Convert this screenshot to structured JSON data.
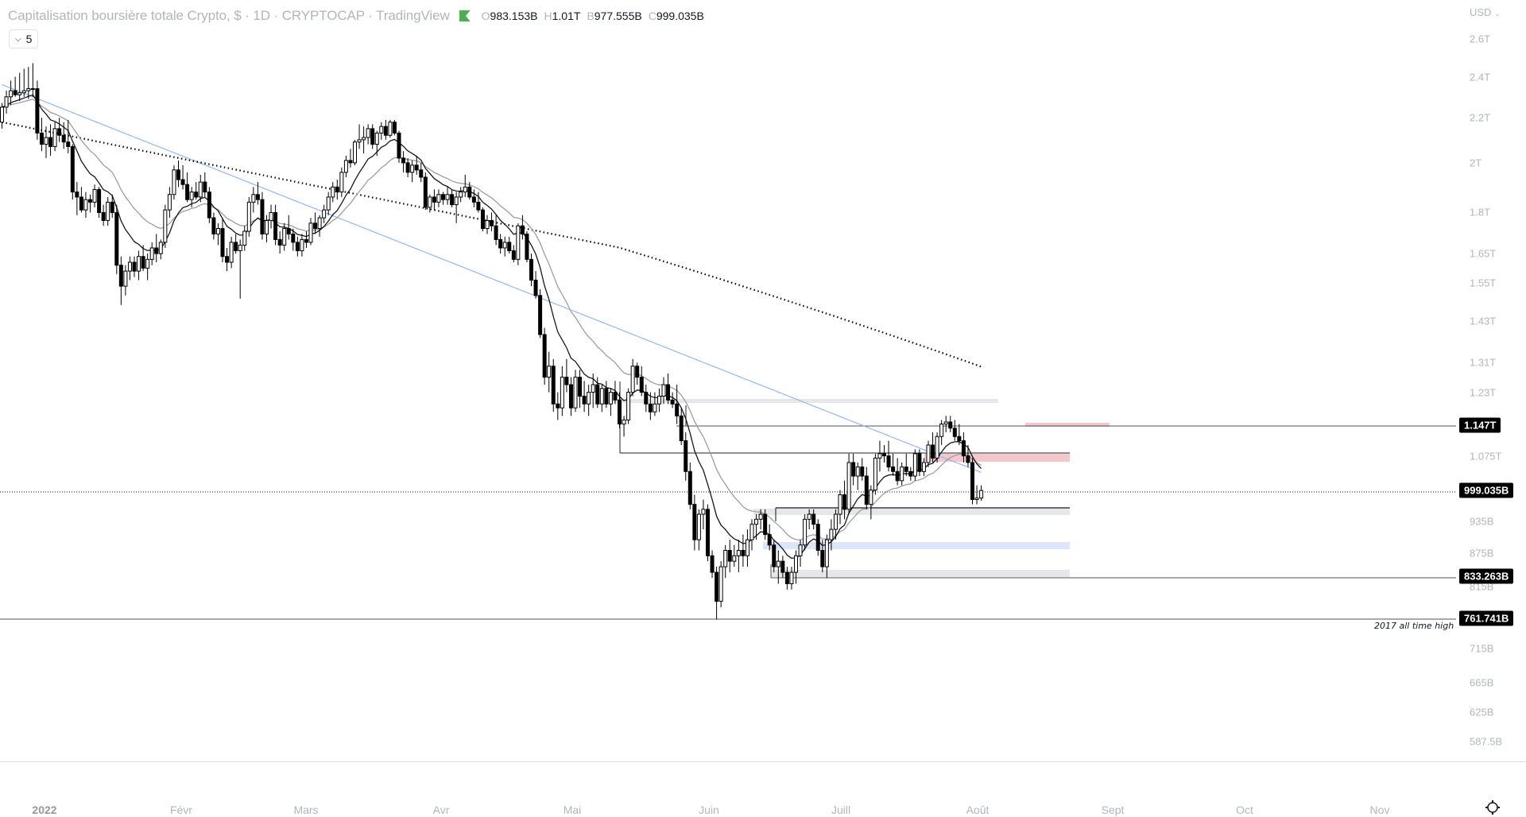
{
  "header": {
    "title": "Capitalisation boursière totale Crypto, $ · 1D · CRYPTOCAP · TradingView",
    "status_icon": "market-open-flag-icon",
    "ohlc": [
      {
        "key": "O",
        "value": "983.153B"
      },
      {
        "key": "H",
        "value": "1.01T"
      },
      {
        "key": "B",
        "value": "977.555B"
      },
      {
        "key": "C",
        "value": "999.035B"
      }
    ],
    "collapse_count": "5"
  },
  "price_axis": {
    "currency": "USD",
    "ticks": [
      "2.6T",
      "2.4T",
      "2.2T",
      "2T",
      "1.8T",
      "1.65T",
      "1.55T",
      "1.43T",
      "1.31T",
      "1.23T",
      "1.075T",
      "935B",
      "875B",
      "815B",
      "715B",
      "665B",
      "625B",
      "587.5B"
    ],
    "tags": [
      {
        "label": "1.147T",
        "value": 1147
      },
      {
        "label": "999.035B",
        "value": 999.035
      },
      {
        "label": "833.263B",
        "value": 833.263
      },
      {
        "label": "761.741B",
        "value": 761.741
      }
    ]
  },
  "time_axis": {
    "labels": [
      "2022",
      "Févr",
      "Mars",
      "Avr",
      "Mai",
      "Juin",
      "Juill",
      "Août",
      "Sept",
      "Oct",
      "Nov"
    ]
  },
  "annotations": {
    "ath_label": "2017 all time high"
  },
  "colors": {
    "up_body": "#ffffff",
    "down_body": "#000000",
    "ma_fast": "#131722",
    "ma_mid": "#9e9e9e",
    "ma_100": "#90b8f0",
    "ma_200": "#000000",
    "supply_zone": "#f4c7cb",
    "demand_zone_blue": "#dde5fb",
    "grey_zone": "#e6e7ea"
  },
  "chart_data": {
    "type": "candlestick",
    "title": "Capitalisation boursière totale Crypto, $ · 1D · CRYPTOCAP",
    "xlabel": "",
    "ylabel": "USD (billions)",
    "scale": "log",
    "ylim": [
      560,
      2750
    ],
    "x_start": "2021-12-22",
    "unit": "B",
    "ohlc": [
      [
        2180,
        2270,
        2150,
        2250
      ],
      [
        2250,
        2330,
        2220,
        2300
      ],
      [
        2300,
        2380,
        2260,
        2330
      ],
      [
        2330,
        2400,
        2300,
        2310
      ],
      [
        2310,
        2420,
        2280,
        2320
      ],
      [
        2320,
        2440,
        2300,
        2330
      ],
      [
        2330,
        2450,
        2290,
        2340
      ],
      [
        2340,
        2470,
        2300,
        2340
      ],
      [
        2340,
        2380,
        2100,
        2130
      ],
      [
        2130,
        2200,
        2050,
        2080
      ],
      [
        2080,
        2160,
        2020,
        2110
      ],
      [
        2110,
        2170,
        2030,
        2070
      ],
      [
        2070,
        2180,
        2050,
        2150
      ],
      [
        2150,
        2200,
        2090,
        2120
      ],
      [
        2120,
        2180,
        2060,
        2090
      ],
      [
        2090,
        2190,
        2040,
        2070
      ],
      [
        2070,
        2080,
        1850,
        1880
      ],
      [
        1880,
        1920,
        1790,
        1860
      ],
      [
        1860,
        1900,
        1800,
        1810
      ],
      [
        1810,
        1880,
        1780,
        1850
      ],
      [
        1850,
        1870,
        1800,
        1840
      ],
      [
        1840,
        1910,
        1820,
        1890
      ],
      [
        1890,
        1900,
        1780,
        1800
      ],
      [
        1800,
        1830,
        1750,
        1770
      ],
      [
        1770,
        1860,
        1750,
        1840
      ],
      [
        1840,
        1870,
        1780,
        1800
      ],
      [
        1800,
        1830,
        1580,
        1610
      ],
      [
        1610,
        1640,
        1480,
        1540
      ],
      [
        1540,
        1610,
        1510,
        1590
      ],
      [
        1590,
        1640,
        1560,
        1620
      ],
      [
        1620,
        1640,
        1570,
        1590
      ],
      [
        1590,
        1660,
        1560,
        1640
      ],
      [
        1640,
        1680,
        1590,
        1600
      ],
      [
        1600,
        1650,
        1560,
        1630
      ],
      [
        1630,
        1690,
        1610,
        1670
      ],
      [
        1670,
        1720,
        1620,
        1650
      ],
      [
        1650,
        1700,
        1630,
        1690
      ],
      [
        1690,
        1830,
        1670,
        1810
      ],
      [
        1810,
        1900,
        1780,
        1870
      ],
      [
        1870,
        1990,
        1850,
        1970
      ],
      [
        1970,
        2010,
        1900,
        1930
      ],
      [
        1930,
        1990,
        1890,
        1910
      ],
      [
        1910,
        1960,
        1840,
        1850
      ],
      [
        1850,
        1900,
        1820,
        1880
      ],
      [
        1880,
        1920,
        1850,
        1860
      ],
      [
        1860,
        1950,
        1840,
        1920
      ],
      [
        1920,
        1960,
        1860,
        1880
      ],
      [
        1880,
        1900,
        1760,
        1780
      ],
      [
        1780,
        1800,
        1700,
        1720
      ],
      [
        1720,
        1760,
        1680,
        1740
      ],
      [
        1740,
        1780,
        1620,
        1640
      ],
      [
        1640,
        1670,
        1590,
        1620
      ],
      [
        1620,
        1710,
        1600,
        1690
      ],
      [
        1690,
        1720,
        1650,
        1660
      ],
      [
        1660,
        1700,
        1500,
        1680
      ],
      [
        1680,
        1750,
        1660,
        1730
      ],
      [
        1730,
        1860,
        1710,
        1840
      ],
      [
        1840,
        1900,
        1800,
        1870
      ],
      [
        1870,
        1920,
        1830,
        1850
      ],
      [
        1850,
        1880,
        1700,
        1720
      ],
      [
        1720,
        1790,
        1690,
        1770
      ],
      [
        1770,
        1830,
        1740,
        1800
      ],
      [
        1800,
        1830,
        1680,
        1700
      ],
      [
        1700,
        1730,
        1650,
        1680
      ],
      [
        1680,
        1760,
        1660,
        1740
      ],
      [
        1740,
        1790,
        1700,
        1720
      ],
      [
        1720,
        1740,
        1660,
        1690
      ],
      [
        1690,
        1710,
        1640,
        1660
      ],
      [
        1660,
        1720,
        1640,
        1700
      ],
      [
        1700,
        1730,
        1670,
        1690
      ],
      [
        1690,
        1780,
        1680,
        1760
      ],
      [
        1760,
        1800,
        1720,
        1740
      ],
      [
        1740,
        1790,
        1710,
        1780
      ],
      [
        1780,
        1830,
        1760,
        1810
      ],
      [
        1810,
        1880,
        1790,
        1860
      ],
      [
        1860,
        1920,
        1840,
        1900
      ],
      [
        1900,
        1930,
        1850,
        1880
      ],
      [
        1880,
        1980,
        1860,
        1960
      ],
      [
        1960,
        2030,
        1940,
        2010
      ],
      [
        2010,
        2060,
        1980,
        2000
      ],
      [
        2000,
        2100,
        1990,
        2090
      ],
      [
        2090,
        2170,
        2060,
        2100
      ],
      [
        2100,
        2160,
        2040,
        2110
      ],
      [
        2110,
        2170,
        2080,
        2150
      ],
      [
        2150,
        2170,
        2060,
        2080
      ],
      [
        2080,
        2140,
        2030,
        2130
      ],
      [
        2130,
        2180,
        2100,
        2160
      ],
      [
        2160,
        2190,
        2100,
        2120
      ],
      [
        2120,
        2190,
        2110,
        2180
      ],
      [
        2180,
        2190,
        2120,
        2130
      ],
      [
        2130,
        2140,
        2000,
        2020
      ],
      [
        2020,
        2050,
        1960,
        2000
      ],
      [
        2000,
        2020,
        1940,
        1960
      ],
      [
        1960,
        2010,
        1920,
        1990
      ],
      [
        1990,
        2030,
        1950,
        1970
      ],
      [
        1970,
        2000,
        1920,
        1940
      ],
      [
        1940,
        1960,
        1810,
        1820
      ],
      [
        1820,
        1870,
        1800,
        1860
      ],
      [
        1860,
        1890,
        1810,
        1840
      ],
      [
        1840,
        1890,
        1820,
        1870
      ],
      [
        1870,
        1880,
        1830,
        1850
      ],
      [
        1850,
        1900,
        1830,
        1870
      ],
      [
        1870,
        1890,
        1820,
        1830
      ],
      [
        1830,
        1880,
        1760,
        1860
      ],
      [
        1860,
        1900,
        1840,
        1880
      ],
      [
        1880,
        1950,
        1860,
        1900
      ],
      [
        1900,
        1920,
        1850,
        1860
      ],
      [
        1860,
        1890,
        1820,
        1840
      ],
      [
        1840,
        1880,
        1800,
        1810
      ],
      [
        1810,
        1820,
        1730,
        1740
      ],
      [
        1740,
        1790,
        1720,
        1770
      ],
      [
        1770,
        1800,
        1730,
        1750
      ],
      [
        1750,
        1790,
        1680,
        1700
      ],
      [
        1700,
        1720,
        1650,
        1670
      ],
      [
        1670,
        1710,
        1640,
        1690
      ],
      [
        1690,
        1710,
        1650,
        1660
      ],
      [
        1660,
        1680,
        1620,
        1630
      ],
      [
        1630,
        1760,
        1610,
        1750
      ],
      [
        1750,
        1790,
        1700,
        1720
      ],
      [
        1720,
        1730,
        1620,
        1630
      ],
      [
        1630,
        1650,
        1540,
        1560
      ],
      [
        1560,
        1590,
        1500,
        1510
      ],
      [
        1510,
        1530,
        1380,
        1390
      ],
      [
        1390,
        1410,
        1250,
        1270
      ],
      [
        1270,
        1340,
        1230,
        1300
      ],
      [
        1300,
        1320,
        1180,
        1200
      ],
      [
        1200,
        1230,
        1160,
        1190
      ],
      [
        1190,
        1300,
        1170,
        1270
      ],
      [
        1270,
        1320,
        1230,
        1250
      ],
      [
        1250,
        1270,
        1170,
        1190
      ],
      [
        1190,
        1290,
        1180,
        1270
      ],
      [
        1270,
        1290,
        1190,
        1220
      ],
      [
        1220,
        1260,
        1180,
        1200
      ],
      [
        1200,
        1250,
        1170,
        1230
      ],
      [
        1230,
        1280,
        1190,
        1250
      ],
      [
        1250,
        1270,
        1190,
        1200
      ],
      [
        1200,
        1250,
        1180,
        1240
      ],
      [
        1240,
        1260,
        1190,
        1200
      ],
      [
        1200,
        1240,
        1170,
        1230
      ],
      [
        1230,
        1260,
        1200,
        1210
      ],
      [
        1210,
        1230,
        1140,
        1150
      ],
      [
        1150,
        1170,
        1120,
        1160
      ],
      [
        1160,
        1240,
        1150,
        1230
      ],
      [
        1230,
        1320,
        1220,
        1300
      ],
      [
        1300,
        1310,
        1250,
        1270
      ],
      [
        1270,
        1300,
        1220,
        1230
      ],
      [
        1230,
        1250,
        1180,
        1200
      ],
      [
        1200,
        1230,
        1160,
        1180
      ],
      [
        1180,
        1230,
        1170,
        1200
      ],
      [
        1200,
        1240,
        1180,
        1220
      ],
      [
        1220,
        1270,
        1200,
        1250
      ],
      [
        1250,
        1280,
        1200,
        1210
      ],
      [
        1210,
        1230,
        1190,
        1200
      ],
      [
        1200,
        1250,
        1150,
        1170
      ],
      [
        1170,
        1190,
        1100,
        1110
      ],
      [
        1110,
        1130,
        1020,
        1040
      ],
      [
        1040,
        1060,
        960,
        970
      ],
      [
        970,
        990,
        880,
        900
      ],
      [
        900,
        960,
        880,
        950
      ],
      [
        950,
        980,
        920,
        960
      ],
      [
        960,
        970,
        860,
        870
      ],
      [
        870,
        880,
        830,
        840
      ],
      [
        840,
        850,
        760,
        790
      ],
      [
        790,
        860,
        780,
        850
      ],
      [
        850,
        890,
        830,
        880
      ],
      [
        880,
        900,
        840,
        860
      ],
      [
        860,
        890,
        850,
        870
      ],
      [
        870,
        900,
        840,
        880
      ],
      [
        880,
        910,
        850,
        870
      ],
      [
        870,
        920,
        850,
        900
      ],
      [
        900,
        940,
        880,
        930
      ],
      [
        930,
        950,
        900,
        940
      ],
      [
        940,
        960,
        920,
        950
      ],
      [
        950,
        960,
        900,
        910
      ],
      [
        910,
        930,
        880,
        890
      ],
      [
        890,
        900,
        840,
        850
      ],
      [
        850,
        880,
        820,
        860
      ],
      [
        860,
        870,
        830,
        840
      ],
      [
        840,
        850,
        810,
        820
      ],
      [
        820,
        850,
        810,
        840
      ],
      [
        840,
        880,
        820,
        870
      ],
      [
        870,
        900,
        850,
        890
      ],
      [
        890,
        950,
        880,
        940
      ],
      [
        940,
        960,
        920,
        950
      ],
      [
        950,
        960,
        920,
        930
      ],
      [
        930,
        940,
        870,
        880
      ],
      [
        880,
        900,
        840,
        850
      ],
      [
        850,
        910,
        830,
        900
      ],
      [
        900,
        940,
        880,
        920
      ],
      [
        920,
        960,
        900,
        950
      ],
      [
        950,
        1000,
        930,
        990
      ],
      [
        990,
        1020,
        940,
        960
      ],
      [
        960,
        1080,
        950,
        1060
      ],
      [
        1060,
        1080,
        1010,
        1030
      ],
      [
        1030,
        1060,
        1000,
        1050
      ],
      [
        1050,
        1070,
        1020,
        1030
      ],
      [
        1030,
        1050,
        960,
        970
      ],
      [
        970,
        1010,
        940,
        1000
      ],
      [
        1000,
        1080,
        990,
        1070
      ],
      [
        1070,
        1110,
        1040,
        1080
      ],
      [
        1080,
        1100,
        1060,
        1075
      ],
      [
        1075,
        1110,
        1040,
        1050
      ],
      [
        1050,
        1080,
        1030,
        1040
      ],
      [
        1040,
        1070,
        1010,
        1020
      ],
      [
        1020,
        1060,
        1010,
        1050
      ],
      [
        1050,
        1080,
        1030,
        1040
      ],
      [
        1040,
        1050,
        1020,
        1030
      ],
      [
        1030,
        1090,
        1020,
        1080
      ],
      [
        1080,
        1090,
        1030,
        1040
      ],
      [
        1040,
        1070,
        1030,
        1060
      ],
      [
        1060,
        1110,
        1050,
        1100
      ],
      [
        1100,
        1130,
        1060,
        1070
      ],
      [
        1070,
        1130,
        1060,
        1120
      ],
      [
        1120,
        1160,
        1100,
        1150
      ],
      [
        1150,
        1170,
        1130,
        1155
      ],
      [
        1155,
        1170,
        1130,
        1140
      ],
      [
        1140,
        1160,
        1110,
        1120
      ],
      [
        1120,
        1150,
        1100,
        1110
      ],
      [
        1110,
        1130,
        1060,
        1075
      ],
      [
        1075,
        1100,
        1050,
        1060
      ],
      [
        1060,
        1070,
        970,
        980
      ],
      [
        980,
        1010,
        970,
        983
      ],
      [
        983.153,
        1010,
        977.555,
        999.035
      ]
    ],
    "moving_averages": [
      {
        "name": "EMA fast",
        "color": "#131722",
        "period": 10
      },
      {
        "name": "EMA mid",
        "color": "#9e9e9e",
        "period": 20
      },
      {
        "name": "MA 100",
        "color": "#90b8f0",
        "period": 100
      },
      {
        "name": "MA 200",
        "color": "#000000",
        "style": "dotted"
      }
    ],
    "horizontal_levels": [
      {
        "value": 1147,
        "label": "1.147T"
      },
      {
        "value": 999.035,
        "label": "999.035B",
        "style": "dotted"
      },
      {
        "value": 833.263,
        "label": "833.263B"
      },
      {
        "value": 761.741,
        "label": "761.741B",
        "note": "2017 all time high"
      }
    ],
    "zones": [
      {
        "type": "grey",
        "top": 1225,
        "bottom": 1215
      },
      {
        "type": "supply-red",
        "top": 1155,
        "bottom": 1140
      },
      {
        "type": "supply-red",
        "top": 1080,
        "bottom": 1060
      },
      {
        "type": "grey",
        "top": 975,
        "bottom": 960
      },
      {
        "type": "blue",
        "top": 900,
        "bottom": 888
      },
      {
        "type": "grey",
        "top": 845,
        "bottom": 833
      }
    ]
  }
}
